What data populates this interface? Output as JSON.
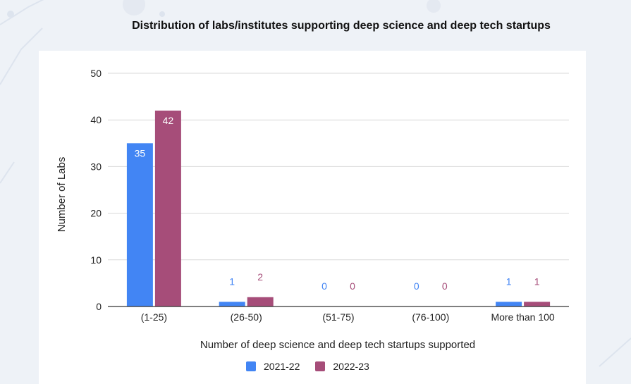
{
  "chart_data": {
    "type": "bar",
    "title": "Distribution of labs/institutes supporting deep science and deep tech startups",
    "xlabel": "Number of deep science and deep tech startups supported",
    "ylabel": "Number of Labs",
    "categories": [
      "(1-25)",
      "(26-50)",
      "(51-75)",
      "(76-100)",
      "More than 100"
    ],
    "series": [
      {
        "name": "2021-22",
        "values": [
          35,
          1,
          0,
          0,
          1
        ],
        "color": "#4285f4"
      },
      {
        "name": "2022-23",
        "values": [
          42,
          2,
          0,
          0,
          1
        ],
        "color": "#a64d79"
      }
    ],
    "ylim": [
      0,
      50
    ],
    "yticks": [
      0,
      10,
      20,
      30,
      40,
      50
    ],
    "grid": true,
    "legend_position": "bottom"
  }
}
